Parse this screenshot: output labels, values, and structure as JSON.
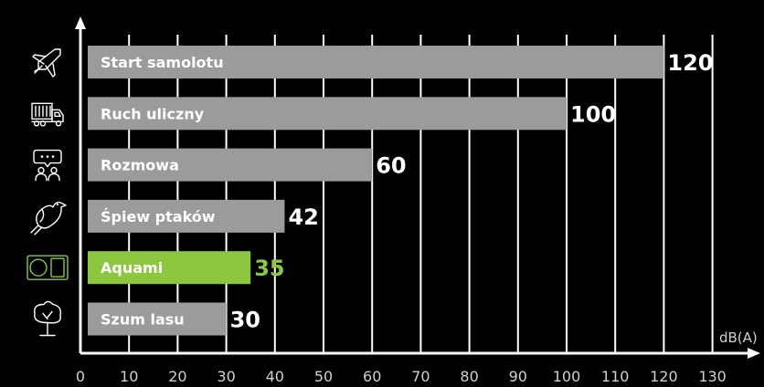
{
  "chart_data": {
    "type": "bar",
    "orientation": "horizontal",
    "categories": [
      "Start samolotu",
      "Ruch uliczny",
      "Rozmowa",
      "Śpiew ptaków",
      "Aquami",
      "Szum lasu"
    ],
    "values": [
      120,
      100,
      60,
      42,
      35,
      30
    ],
    "value_labels": [
      "120",
      "100",
      "60",
      "42",
      "35",
      "30"
    ],
    "highlight_index": 4,
    "icons": [
      "airplane-icon",
      "truck-icon",
      "conversation-icon",
      "bird-icon",
      "aquami-device-icon",
      "tree-icon"
    ],
    "xlabel": "dB(A)",
    "xlim": [
      0,
      130
    ],
    "xticks": [
      "0",
      "10",
      "20",
      "30",
      "40",
      "50",
      "60",
      "70",
      "80",
      "90",
      "100",
      "110",
      "120",
      "130"
    ],
    "grid": true,
    "colors": {
      "background": "#000000",
      "bar": "#9b9b9b",
      "highlight": "#8dc63f",
      "grid": "#ffffff",
      "text": "#ffffff",
      "axis_text": "#d0d0d0"
    }
  }
}
